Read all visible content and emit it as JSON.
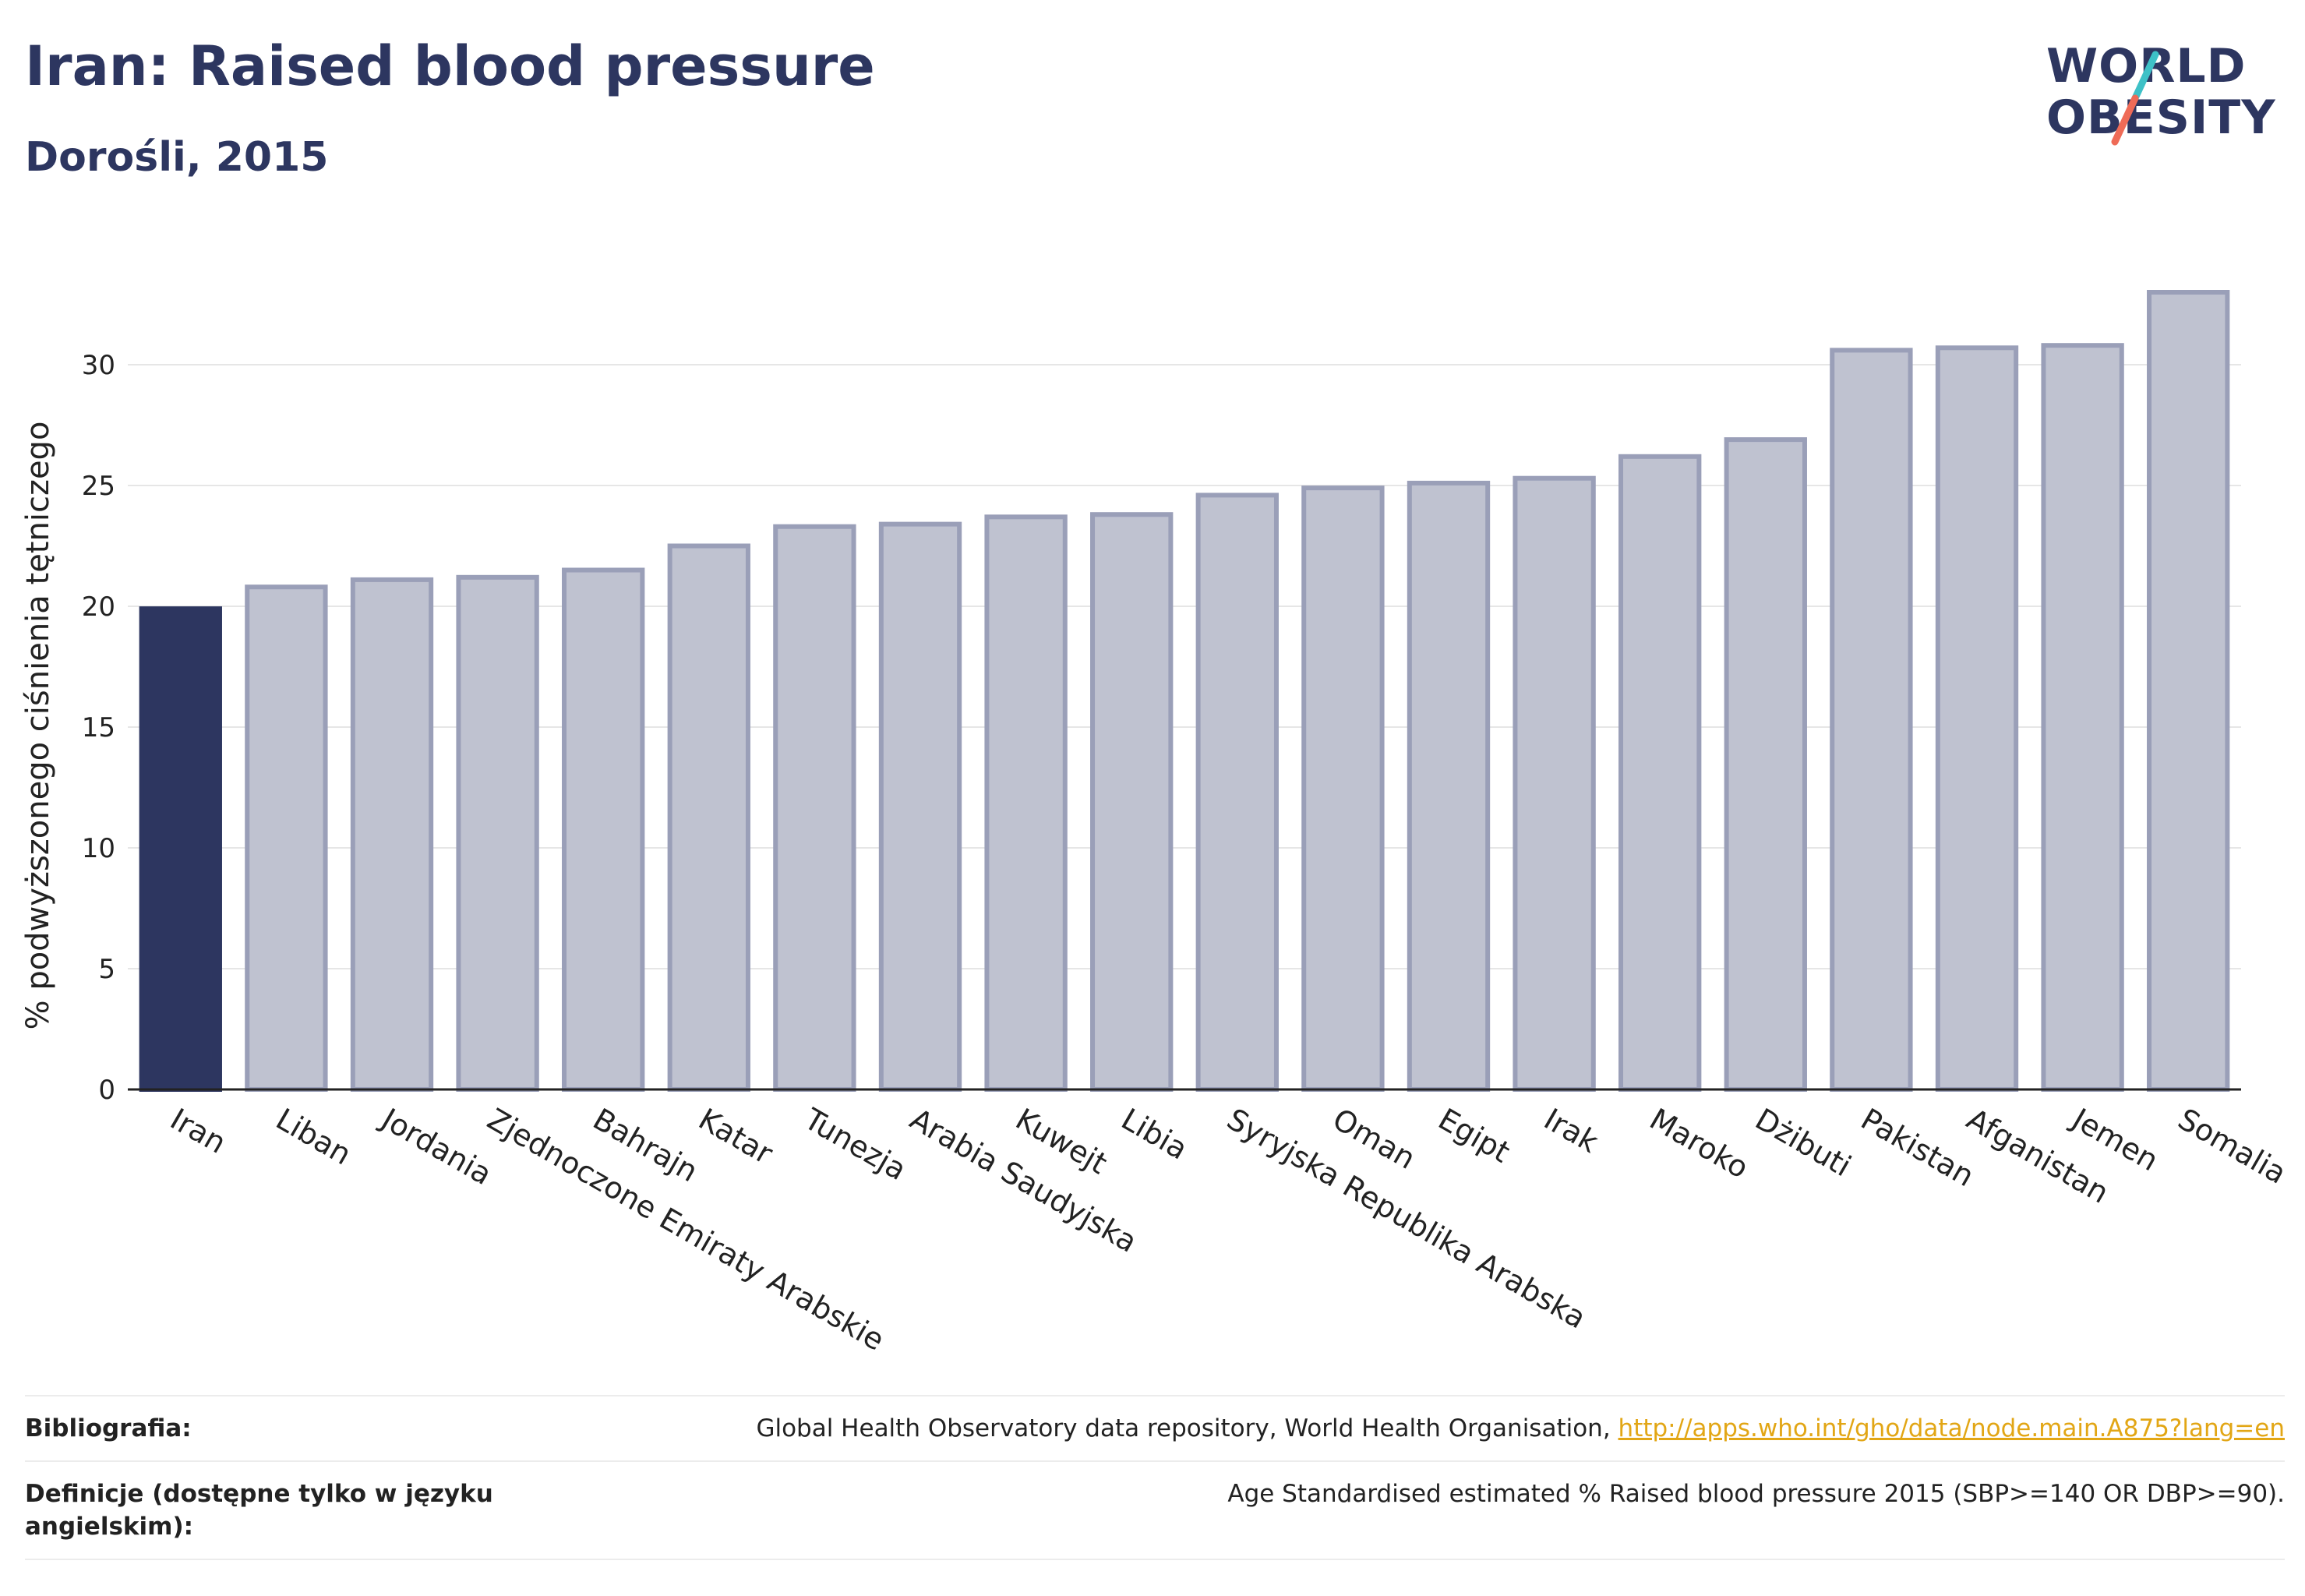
{
  "header": {
    "title": "Iran: Raised blood pressure",
    "subtitle": "Dorośli, 2015"
  },
  "logo": {
    "line1": "WORLD",
    "line2": "OBESITY",
    "slash_colors": [
      "#3ec1c7",
      "#ef6b57"
    ]
  },
  "colors": {
    "highlight": "#2d3660",
    "bar_fill": "#bfc2d0",
    "bar_stroke": "#9a9fb8",
    "link": "#e2a615"
  },
  "chart_data": {
    "type": "bar",
    "title": "Iran: Raised blood pressure",
    "subtitle": "Dorośli, 2015",
    "ylabel": "% podwyższonego ciśnienia tętniczego",
    "xlabel": "",
    "ylim": [
      0,
      34
    ],
    "yticks": [
      0,
      5,
      10,
      15,
      20,
      25,
      30
    ],
    "grid": true,
    "highlight_category": "Iran",
    "categories": [
      "Iran",
      "Liban",
      "Jordania",
      "Zjednoczone Emiraty Arabskie",
      "Bahrajn",
      "Katar",
      "Tunezja",
      "Arabia Saudyjska",
      "Kuwejt",
      "Libia",
      "Syryjska Republika Arabska",
      "Oman",
      "Egipt",
      "Irak",
      "Maroko",
      "Dżibuti",
      "Pakistan",
      "Afganistan",
      "Jemen",
      "Somalia"
    ],
    "values": [
      19.9,
      20.8,
      21.1,
      21.2,
      21.5,
      22.5,
      23.3,
      23.4,
      23.7,
      23.8,
      24.6,
      24.9,
      25.1,
      25.3,
      26.2,
      26.9,
      30.6,
      30.7,
      30.8,
      33.0
    ]
  },
  "notes": {
    "bibliography_label": "Bibliografia:",
    "bibliography_text": "Global Health Observatory data repository, World Health Organisation,",
    "bibliography_link": "http://apps.who.int/gho/data/node.main.A875?lang=en",
    "definitions_label": "Definicje (dostępne tylko w języku angielskim):",
    "definitions_text": "Age Standardised estimated % Raised blood pressure 2015 (SBP>=140 OR DBP>=90)."
  }
}
